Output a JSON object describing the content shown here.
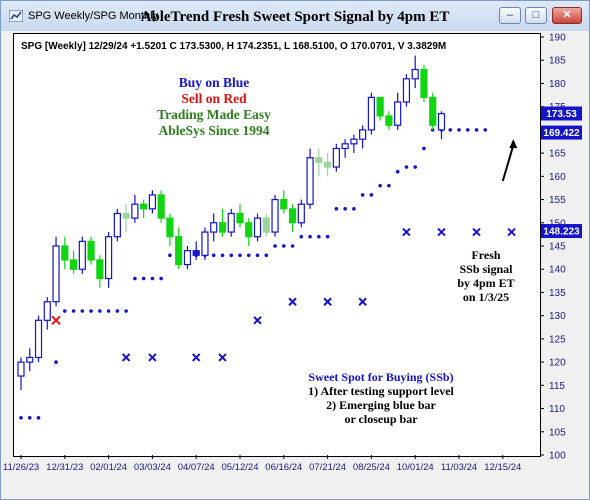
{
  "window": {
    "title": "SPG Weekly/SPG Monthly",
    "buttons": {
      "minimize": "–",
      "maximize": "□",
      "close": "✕"
    },
    "app_icon": "chart-window-icon"
  },
  "header": {
    "info": "SPG [Weekly] 12/29/24 +1.5201 C 173.5300, H 174.2351, L 168.5100, O 170.0701, V 3.3829M"
  },
  "legend": {
    "line1": "Buy on Blue",
    "line2": "Sell on Red",
    "line3": "Trading Made Easy",
    "line4": "AbleSys Since 1994"
  },
  "annotations": {
    "ssb_signal": [
      "Fresh",
      "SSb signal",
      "by 4pm ET",
      "on 1/3/25"
    ],
    "sweet_spot": [
      "Sweet Spot for Buying (SSb)",
      "1) After testing support level",
      "2) Emerging blue bar",
      "or closeup bar"
    ]
  },
  "colors": {
    "up": "#1414c8",
    "down": "#12d512",
    "neutral": "#9ed49e",
    "sell": "#e01010",
    "stops": "#1414c8",
    "price_tag": "#1414c8"
  },
  "chart_data": {
    "type": "candlestick",
    "title": "AbleTrend Fresh Sweet Sport Signal by 4pm ET",
    "symbol": "SPG",
    "interval": "weekly",
    "y_axis": {
      "min": 100,
      "max": 190,
      "step": 5,
      "position": "right"
    },
    "x_ticks": [
      "11/26/23",
      "12/31/23",
      "02/01/24",
      "03/03/24",
      "04/07/24",
      "05/12/24",
      "06/16/24",
      "07/21/24",
      "08/25/24",
      "10/01/24",
      "11/03/24",
      "12/15/24"
    ],
    "x_tick_bar_index": [
      0,
      5,
      10,
      15,
      20,
      25,
      30,
      35,
      40,
      45,
      50,
      55
    ],
    "price_tags": [
      173.53,
      169.422,
      148.223
    ],
    "candles": [
      {
        "o": 117,
        "h": 121,
        "l": 114,
        "c": 120,
        "col": "up"
      },
      {
        "o": 120,
        "h": 123,
        "l": 118,
        "c": 121,
        "col": "up"
      },
      {
        "o": 121,
        "h": 130,
        "l": 120,
        "c": 129,
        "col": "up"
      },
      {
        "o": 129,
        "h": 134,
        "l": 127,
        "c": 133,
        "col": "up"
      },
      {
        "o": 133,
        "h": 147,
        "l": 132,
        "c": 145,
        "col": "up"
      },
      {
        "o": 145,
        "h": 147,
        "l": 140,
        "c": 142,
        "col": "down"
      },
      {
        "o": 142,
        "h": 144,
        "l": 139,
        "c": 140,
        "col": "down"
      },
      {
        "o": 140,
        "h": 147,
        "l": 139,
        "c": 146,
        "col": "up"
      },
      {
        "o": 146,
        "h": 147,
        "l": 141,
        "c": 142,
        "col": "down"
      },
      {
        "o": 142,
        "h": 143,
        "l": 136,
        "c": 138,
        "col": "down"
      },
      {
        "o": 138,
        "h": 148,
        "l": 136,
        "c": 147,
        "col": "up"
      },
      {
        "o": 147,
        "h": 153,
        "l": 146,
        "c": 152,
        "col": "up"
      },
      {
        "o": 152,
        "h": 154,
        "l": 148,
        "c": 151,
        "col": "neutral"
      },
      {
        "o": 151,
        "h": 156,
        "l": 150,
        "c": 154,
        "col": "up"
      },
      {
        "o": 154,
        "h": 155,
        "l": 151,
        "c": 153,
        "col": "down"
      },
      {
        "o": 153,
        "h": 157,
        "l": 152,
        "c": 156,
        "col": "up"
      },
      {
        "o": 156,
        "h": 157,
        "l": 150,
        "c": 151,
        "col": "down"
      },
      {
        "o": 151,
        "h": 152,
        "l": 145,
        "c": 147,
        "col": "down"
      },
      {
        "o": 147,
        "h": 149,
        "l": 140,
        "c": 141,
        "col": "down"
      },
      {
        "o": 141,
        "h": 145,
        "l": 140,
        "c": 144,
        "col": "up"
      },
      {
        "o": 144,
        "h": 146,
        "l": 142,
        "c": 143,
        "col": "up"
      },
      {
        "o": 143,
        "h": 149,
        "l": 142,
        "c": 148,
        "col": "up"
      },
      {
        "o": 148,
        "h": 152,
        "l": 146,
        "c": 150,
        "col": "up"
      },
      {
        "o": 150,
        "h": 153,
        "l": 147,
        "c": 148,
        "col": "down"
      },
      {
        "o": 148,
        "h": 153,
        "l": 147,
        "c": 152,
        "col": "up"
      },
      {
        "o": 152,
        "h": 154,
        "l": 149,
        "c": 150,
        "col": "down"
      },
      {
        "o": 150,
        "h": 151,
        "l": 145,
        "c": 147,
        "col": "down"
      },
      {
        "o": 147,
        "h": 152,
        "l": 146,
        "c": 151,
        "col": "up"
      },
      {
        "o": 151,
        "h": 152,
        "l": 147,
        "c": 148,
        "col": "neutral"
      },
      {
        "o": 148,
        "h": 156,
        "l": 147,
        "c": 155,
        "col": "up"
      },
      {
        "o": 155,
        "h": 157,
        "l": 152,
        "c": 153,
        "col": "down"
      },
      {
        "o": 153,
        "h": 154,
        "l": 148,
        "c": 150,
        "col": "down"
      },
      {
        "o": 150,
        "h": 155,
        "l": 149,
        "c": 154,
        "col": "up"
      },
      {
        "o": 154,
        "h": 166,
        "l": 153,
        "c": 164,
        "col": "up"
      },
      {
        "o": 164,
        "h": 166,
        "l": 160,
        "c": 163,
        "col": "neutral"
      },
      {
        "o": 163,
        "h": 165,
        "l": 160,
        "c": 162,
        "col": "neutral"
      },
      {
        "o": 162,
        "h": 167,
        "l": 161,
        "c": 166,
        "col": "up"
      },
      {
        "o": 166,
        "h": 168,
        "l": 164,
        "c": 167,
        "col": "up"
      },
      {
        "o": 167,
        "h": 169,
        "l": 165,
        "c": 168,
        "col": "up"
      },
      {
        "o": 168,
        "h": 171,
        "l": 166,
        "c": 170,
        "col": "up"
      },
      {
        "o": 170,
        "h": 178,
        "l": 169,
        "c": 177,
        "col": "up"
      },
      {
        "o": 177,
        "h": 177,
        "l": 172,
        "c": 173,
        "col": "down"
      },
      {
        "o": 173,
        "h": 174,
        "l": 170,
        "c": 171,
        "col": "down"
      },
      {
        "o": 171,
        "h": 178,
        "l": 170,
        "c": 176,
        "col": "up"
      },
      {
        "o": 176,
        "h": 182,
        "l": 175,
        "c": 181,
        "col": "up"
      },
      {
        "o": 181,
        "h": 186,
        "l": 179,
        "c": 183,
        "col": "up"
      },
      {
        "o": 183,
        "h": 184,
        "l": 176,
        "c": 177,
        "col": "down"
      },
      {
        "o": 177,
        "h": 178,
        "l": 170,
        "c": 171,
        "col": "down"
      },
      {
        "o": 170,
        "h": 174,
        "l": 168,
        "c": 173.5,
        "col": "up"
      }
    ],
    "stops": [
      {
        "from": 0,
        "to": 2,
        "v": 108
      },
      {
        "from": 4,
        "to": 4,
        "v": 120
      },
      {
        "from": 5,
        "to": 12,
        "v": 131
      },
      {
        "from": 13,
        "to": 16,
        "v": 138
      },
      {
        "from": 17,
        "to": 28,
        "v": 143
      },
      {
        "from": 29,
        "to": 31,
        "v": 145
      },
      {
        "from": 32,
        "to": 35,
        "v": 147
      },
      {
        "from": 36,
        "to": 38,
        "v": 153
      },
      {
        "from": 39,
        "to": 40,
        "v": 156
      },
      {
        "from": 41,
        "to": 42,
        "v": 158
      },
      {
        "from": 43,
        "to": 43,
        "v": 161
      },
      {
        "from": 44,
        "to": 45,
        "v": 162
      },
      {
        "from": 46,
        "to": 46,
        "v": 166
      },
      {
        "from": 47,
        "to": 53,
        "v": 170
      }
    ],
    "sell_marks": [
      {
        "i": 4,
        "v": 129
      }
    ],
    "x_marks": [
      {
        "i": 12,
        "v": 121
      },
      {
        "i": 15,
        "v": 121
      },
      {
        "i": 20,
        "v": 121
      },
      {
        "i": 23,
        "v": 121
      },
      {
        "i": 27,
        "v": 129
      },
      {
        "i": 31,
        "v": 133
      },
      {
        "i": 35,
        "v": 133
      },
      {
        "i": 39,
        "v": 133
      },
      {
        "i": 44,
        "v": 148
      },
      {
        "i": 48,
        "v": 148
      },
      {
        "i": 52,
        "v": 148
      },
      {
        "i": 56,
        "v": 148
      }
    ],
    "arrow": {
      "from_i": 55,
      "from_v": 159,
      "to_i": 56.2,
      "to_v": 168
    }
  }
}
